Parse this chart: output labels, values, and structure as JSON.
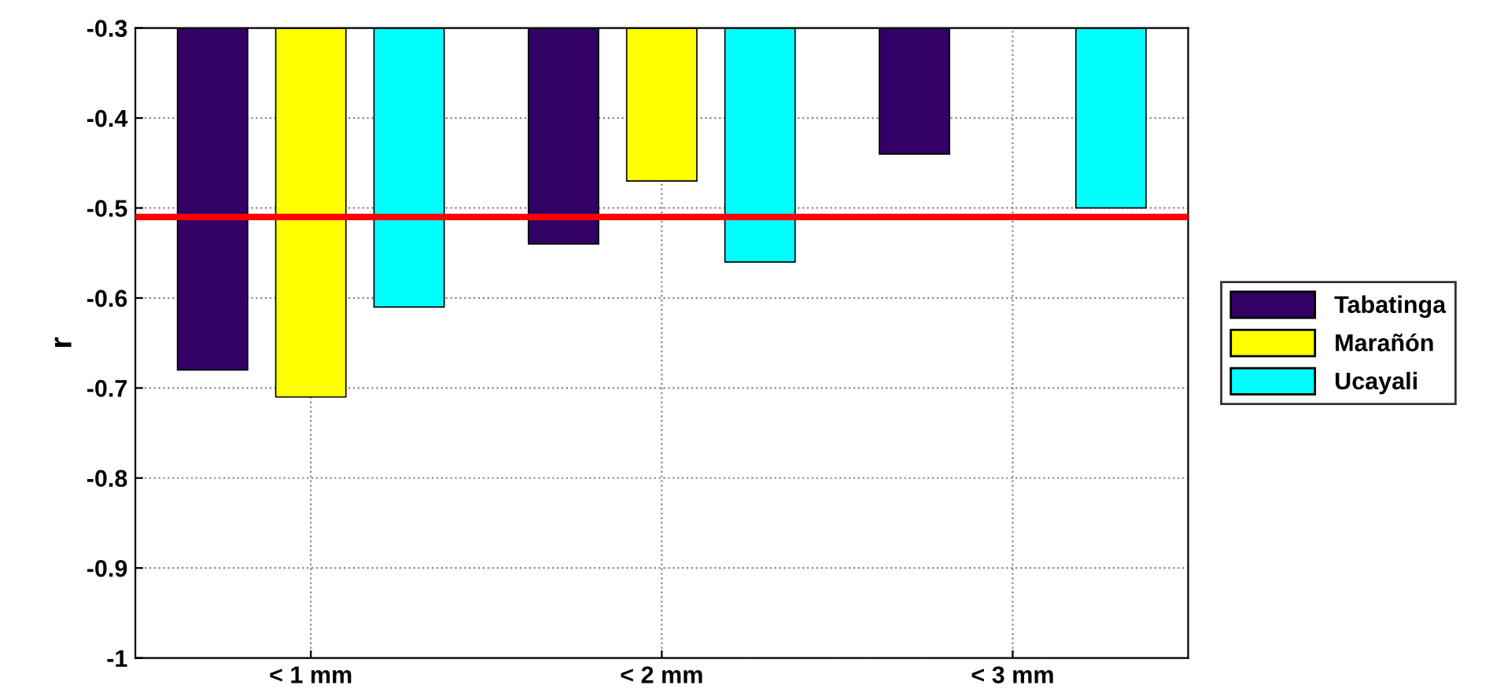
{
  "chart_data": {
    "type": "bar",
    "ylabel": "r",
    "categories": [
      "< 1 mm",
      "< 2 mm",
      "< 3 mm"
    ],
    "series": [
      {
        "name": "Tabatinga",
        "color": "#330066",
        "values": [
          -0.68,
          -0.54,
          -0.44
        ]
      },
      {
        "name": "Marañón",
        "color": "#ffff00",
        "values": [
          -0.71,
          -0.47,
          null
        ]
      },
      {
        "name": "Ucayali",
        "color": "#00ffff",
        "values": [
          -0.61,
          -0.56,
          -0.5
        ]
      }
    ],
    "ylim": [
      -1,
      -0.3
    ],
    "yticks": [
      -1,
      -0.9,
      -0.8,
      -0.7,
      -0.6,
      -0.5,
      -0.4,
      -0.3
    ],
    "ref_lines": [
      {
        "axis": "y",
        "value": -0.51,
        "color": "#ff0000"
      }
    ],
    "grid": true,
    "legend": "right"
  }
}
